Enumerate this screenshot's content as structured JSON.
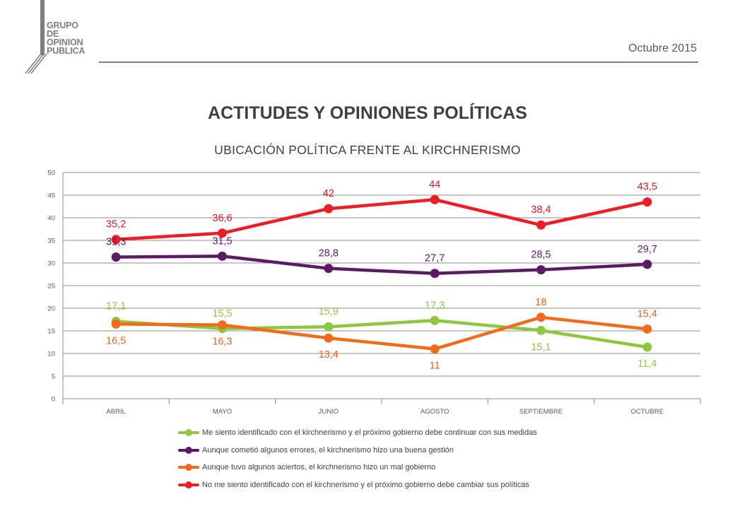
{
  "header": {
    "logo_lines": [
      "GRUPO",
      "DE",
      "OPINION",
      "PUBLICA"
    ],
    "date": "Octubre 2015"
  },
  "title": "ACTITUDES Y OPINIONES POLÍTICAS",
  "subtitle": "UBICACIÓN POLÍTICA FRENTE AL KIRCHNERISMO",
  "chart_data": {
    "type": "line",
    "categories": [
      "ABRIL",
      "MAYO",
      "JUNIO",
      "AGOSTO",
      "SEPTIEMBRE",
      "OCTUBRE"
    ],
    "ylim": [
      0,
      50
    ],
    "yticks": [
      "0",
      "5",
      "10",
      "15",
      "20",
      "25",
      "30",
      "35",
      "40",
      "45",
      "50"
    ],
    "grid": true,
    "legend_position": "bottom",
    "series": [
      {
        "name": "Me siento identificado con el kirchnerismo y el próximo gobierno debe continuar con sus medidas",
        "color": "#8dc63f",
        "label_color": "#8dc63f",
        "values": [
          17.1,
          15.5,
          15.9,
          17.3,
          15.1,
          11.4
        ],
        "labels": [
          "17,1",
          "15,5",
          "15,9",
          "17,3",
          "15,1",
          "11,4"
        ],
        "label_side": [
          "above",
          "above",
          "above",
          "above",
          "below",
          "below"
        ]
      },
      {
        "name": "Aunque cometió algunos errores, el kirchnerismo hizo una buena gestión",
        "color": "#5b1a63",
        "label_color": "#5b1a63",
        "values": [
          31.3,
          31.5,
          28.8,
          27.7,
          28.5,
          29.7
        ],
        "labels": [
          "31,3",
          "31,5",
          "28,8",
          "27,7",
          "28,5",
          "29,7"
        ],
        "label_side": [
          "above",
          "above",
          "above",
          "above",
          "above",
          "above"
        ]
      },
      {
        "name": "Aunque tuvo algunos aciertos, el kirchnerismo hizo un mal gobierno",
        "color": "#f26b1d",
        "label_color": "#e8631a",
        "values": [
          16.5,
          16.3,
          13.4,
          11,
          18,
          15.4
        ],
        "labels": [
          "16,5",
          "16,3",
          "13,4",
          "11",
          "18",
          "15,4"
        ],
        "label_side": [
          "below",
          "below",
          "below",
          "below",
          "above",
          "above"
        ]
      },
      {
        "name": "No me siento identificado con el kirchnerismo y el próximo gobierno debe cambiar sus políticas",
        "color": "#ee1c25",
        "label_color": "#d7191f",
        "values": [
          35.2,
          36.6,
          42,
          44,
          38.4,
          43.5
        ],
        "labels": [
          "35,2",
          "36,6",
          "42",
          "44",
          "38,4",
          "43,5"
        ],
        "label_side": [
          "above",
          "above",
          "above",
          "above",
          "above",
          "above"
        ]
      }
    ]
  }
}
